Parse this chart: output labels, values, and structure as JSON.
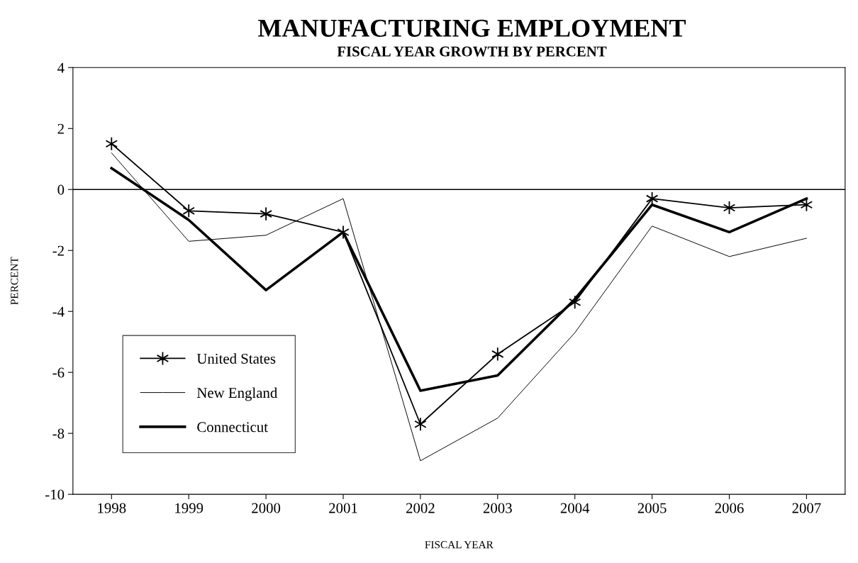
{
  "chart_data": {
    "type": "line",
    "title": "MANUFACTURING EMPLOYMENT",
    "subtitle": "FISCAL YEAR GROWTH BY PERCENT",
    "xlabel": "FISCAL YEAR",
    "ylabel": "PERCENT",
    "categories": [
      "1998",
      "1999",
      "2000",
      "2001",
      "2002",
      "2003",
      "2004",
      "2005",
      "2006",
      "2007"
    ],
    "series": [
      {
        "name": "United States",
        "color": "#000000",
        "marker": "cross",
        "values": [
          1.5,
          -0.7,
          -0.8,
          -1.4,
          -7.7,
          -5.4,
          -3.7,
          -0.3,
          -0.6,
          -0.5
        ]
      },
      {
        "name": "New England",
        "color": "#000000",
        "marker": "none",
        "values": [
          1.2,
          -1.7,
          -1.5,
          -0.3,
          -8.9,
          -7.5,
          -4.7,
          -1.2,
          -2.2,
          -1.6
        ]
      },
      {
        "name": "Connecticut",
        "color": "#000000",
        "marker": "none",
        "values": [
          0.7,
          -1.0,
          -3.3,
          -1.4,
          -6.6,
          -6.1,
          -3.6,
          -0.5,
          -1.4,
          -0.3
        ]
      }
    ],
    "ylim": [
      -10,
      4
    ],
    "yticks": [
      -10,
      -8,
      -6,
      -4,
      -2,
      0,
      2,
      4
    ],
    "ref_lines": [
      {
        "axis": "y",
        "value": 0,
        "label": null,
        "color": "#000000"
      }
    ],
    "grid": false,
    "legend": "bottom left",
    "line_style": "solid"
  }
}
